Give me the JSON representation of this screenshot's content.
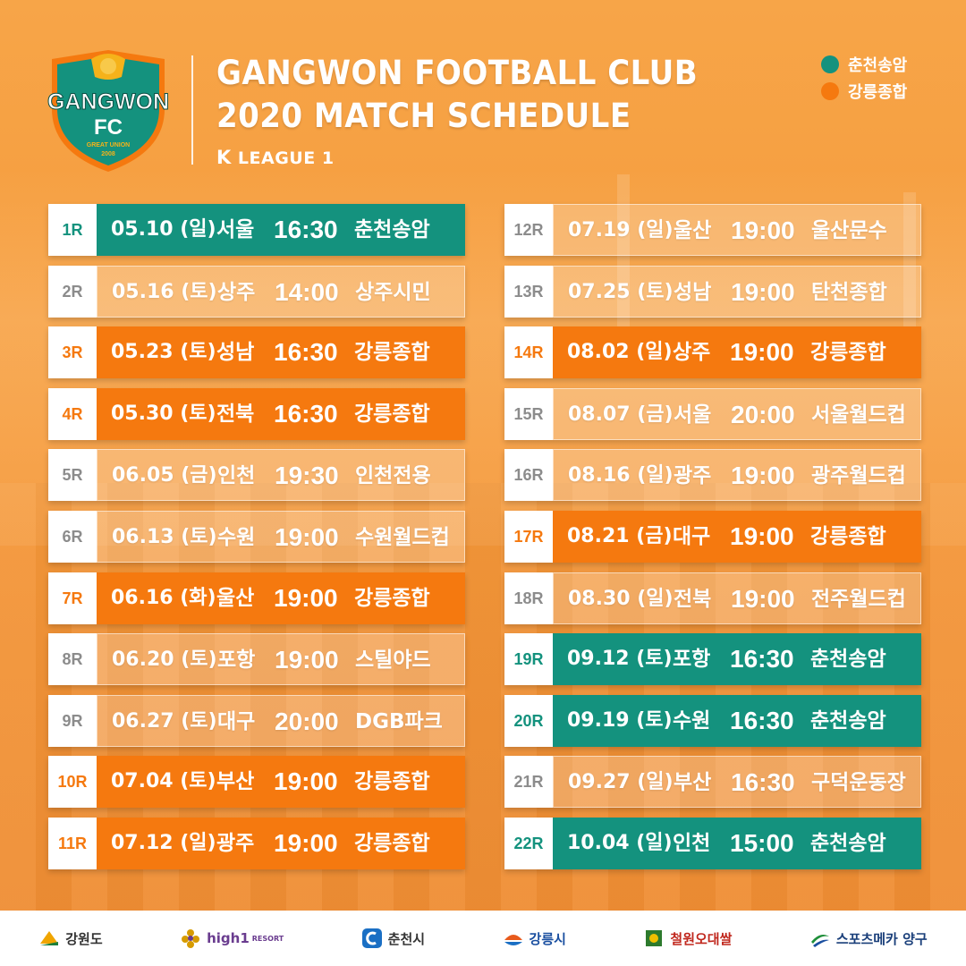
{
  "header": {
    "title_line1": "GANGWON FOOTBALL CLUB",
    "title_line2": "2020 MATCH SCHEDULE",
    "league_k": "K",
    "league_text": "LEAGUE 1",
    "logo": {
      "name": "GANGWON",
      "sub": "FC",
      "motto": "GREAT UNION",
      "year": "2008"
    }
  },
  "legend": [
    {
      "label": "춘천송암",
      "color": "#14927e"
    },
    {
      "label": "강릉종합",
      "color": "#f5790f"
    }
  ],
  "colors": {
    "teal": "#14927e",
    "orange": "#f5790f",
    "away_round_text": "#8c8c8c"
  },
  "matches_left": [
    {
      "round": "1R",
      "date": "05.10 (일)",
      "city": "서울",
      "time": "16:30",
      "venue": "춘천송암",
      "type": "teal"
    },
    {
      "round": "2R",
      "date": "05.16 (토)",
      "city": "상주",
      "time": "14:00",
      "venue": "상주시민",
      "type": "away"
    },
    {
      "round": "3R",
      "date": "05.23 (토)",
      "city": "성남",
      "time": "16:30",
      "venue": "강릉종합",
      "type": "orange"
    },
    {
      "round": "4R",
      "date": "05.30 (토)",
      "city": "전북",
      "time": "16:30",
      "venue": "강릉종합",
      "type": "orange"
    },
    {
      "round": "5R",
      "date": "06.05 (금)",
      "city": "인천",
      "time": "19:30",
      "venue": "인천전용",
      "type": "away"
    },
    {
      "round": "6R",
      "date": "06.13 (토)",
      "city": "수원",
      "time": "19:00",
      "venue": "수원월드컵",
      "type": "away"
    },
    {
      "round": "7R",
      "date": "06.16 (화)",
      "city": "울산",
      "time": "19:00",
      "venue": "강릉종합",
      "type": "orange"
    },
    {
      "round": "8R",
      "date": "06.20 (토)",
      "city": "포항",
      "time": "19:00",
      "venue": "스틸야드",
      "type": "away"
    },
    {
      "round": "9R",
      "date": "06.27 (토)",
      "city": "대구",
      "time": "20:00",
      "venue": "DGB파크",
      "type": "away"
    },
    {
      "round": "10R",
      "date": "07.04 (토)",
      "city": "부산",
      "time": "19:00",
      "venue": "강릉종합",
      "type": "orange"
    },
    {
      "round": "11R",
      "date": "07.12 (일)",
      "city": "광주",
      "time": "19:00",
      "venue": "강릉종합",
      "type": "orange"
    }
  ],
  "matches_right": [
    {
      "round": "12R",
      "date": "07.19 (일)",
      "city": "울산",
      "time": "19:00",
      "venue": "울산문수",
      "type": "away"
    },
    {
      "round": "13R",
      "date": "07.25 (토)",
      "city": "성남",
      "time": "19:00",
      "venue": "탄천종합",
      "type": "away"
    },
    {
      "round": "14R",
      "date": "08.02 (일)",
      "city": "상주",
      "time": "19:00",
      "venue": "강릉종합",
      "type": "orange"
    },
    {
      "round": "15R",
      "date": "08.07 (금)",
      "city": "서울",
      "time": "20:00",
      "venue": "서울월드컵",
      "type": "away"
    },
    {
      "round": "16R",
      "date": "08.16 (일)",
      "city": "광주",
      "time": "19:00",
      "venue": "광주월드컵",
      "type": "away"
    },
    {
      "round": "17R",
      "date": "08.21 (금)",
      "city": "대구",
      "time": "19:00",
      "venue": "강릉종합",
      "type": "orange"
    },
    {
      "round": "18R",
      "date": "08.30 (일)",
      "city": "전북",
      "time": "19:00",
      "venue": "전주월드컵",
      "type": "away"
    },
    {
      "round": "19R",
      "date": "09.12 (토)",
      "city": "포항",
      "time": "16:30",
      "venue": "춘천송암",
      "type": "teal"
    },
    {
      "round": "20R",
      "date": "09.19 (토)",
      "city": "수원",
      "time": "16:30",
      "venue": "춘천송암",
      "type": "teal"
    },
    {
      "round": "21R",
      "date": "09.27 (일)",
      "city": "부산",
      "time": "16:30",
      "venue": "구덕운동장",
      "type": "away"
    },
    {
      "round": "22R",
      "date": "10.04 (일)",
      "city": "인천",
      "time": "15:00",
      "venue": "춘천송암",
      "type": "teal"
    }
  ],
  "sponsors": [
    {
      "label": "강원도",
      "icon": "gangwon-province-icon"
    },
    {
      "label": "high1",
      "sub": "RESORT",
      "icon": "flower-icon"
    },
    {
      "label": "춘천시",
      "icon": "chuncheon-c-icon"
    },
    {
      "label": "강릉시",
      "icon": "gangneung-wave-icon"
    },
    {
      "label": "철원오대쌀",
      "icon": "rice-icon"
    },
    {
      "label": "스포츠메카 양구",
      "icon": "swoosh-icon"
    }
  ]
}
